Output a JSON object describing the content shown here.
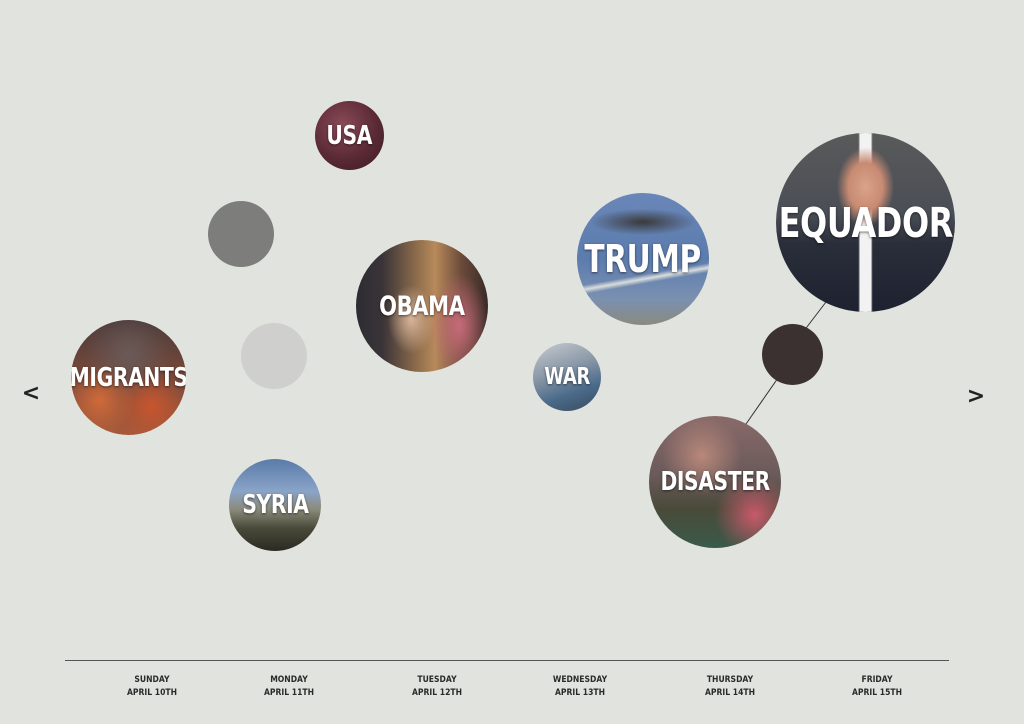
{
  "navigation": {
    "prev_label": "<",
    "next_label": ">"
  },
  "topics": {
    "usa": "USA",
    "obama": "OBAMA",
    "migrants": "MIGRANTS",
    "syria": "SYRIA",
    "war": "WAR",
    "trump": "TRUMP",
    "equador": "EQUADOR",
    "disaster": "DISASTER"
  },
  "timeline": {
    "days": [
      {
        "weekday": "SUNDAY",
        "date": "APRIL 10TH"
      },
      {
        "weekday": "MONDAY",
        "date": "APRIL 11TH"
      },
      {
        "weekday": "TUESDAY",
        "date": "APRIL 12TH"
      },
      {
        "weekday": "WEDNESDAY",
        "date": "APRIL 13TH"
      },
      {
        "weekday": "THURSDAY",
        "date": "APRIL 14TH"
      },
      {
        "weekday": "FRIDAY",
        "date": "APRIL 15TH"
      }
    ]
  },
  "colors": {
    "background": "#e1e4de",
    "empty_bubble_dark": "#7d7d7b",
    "empty_bubble_light": "#cfcfcd",
    "empty_bubble_brown": "#3b3130"
  }
}
